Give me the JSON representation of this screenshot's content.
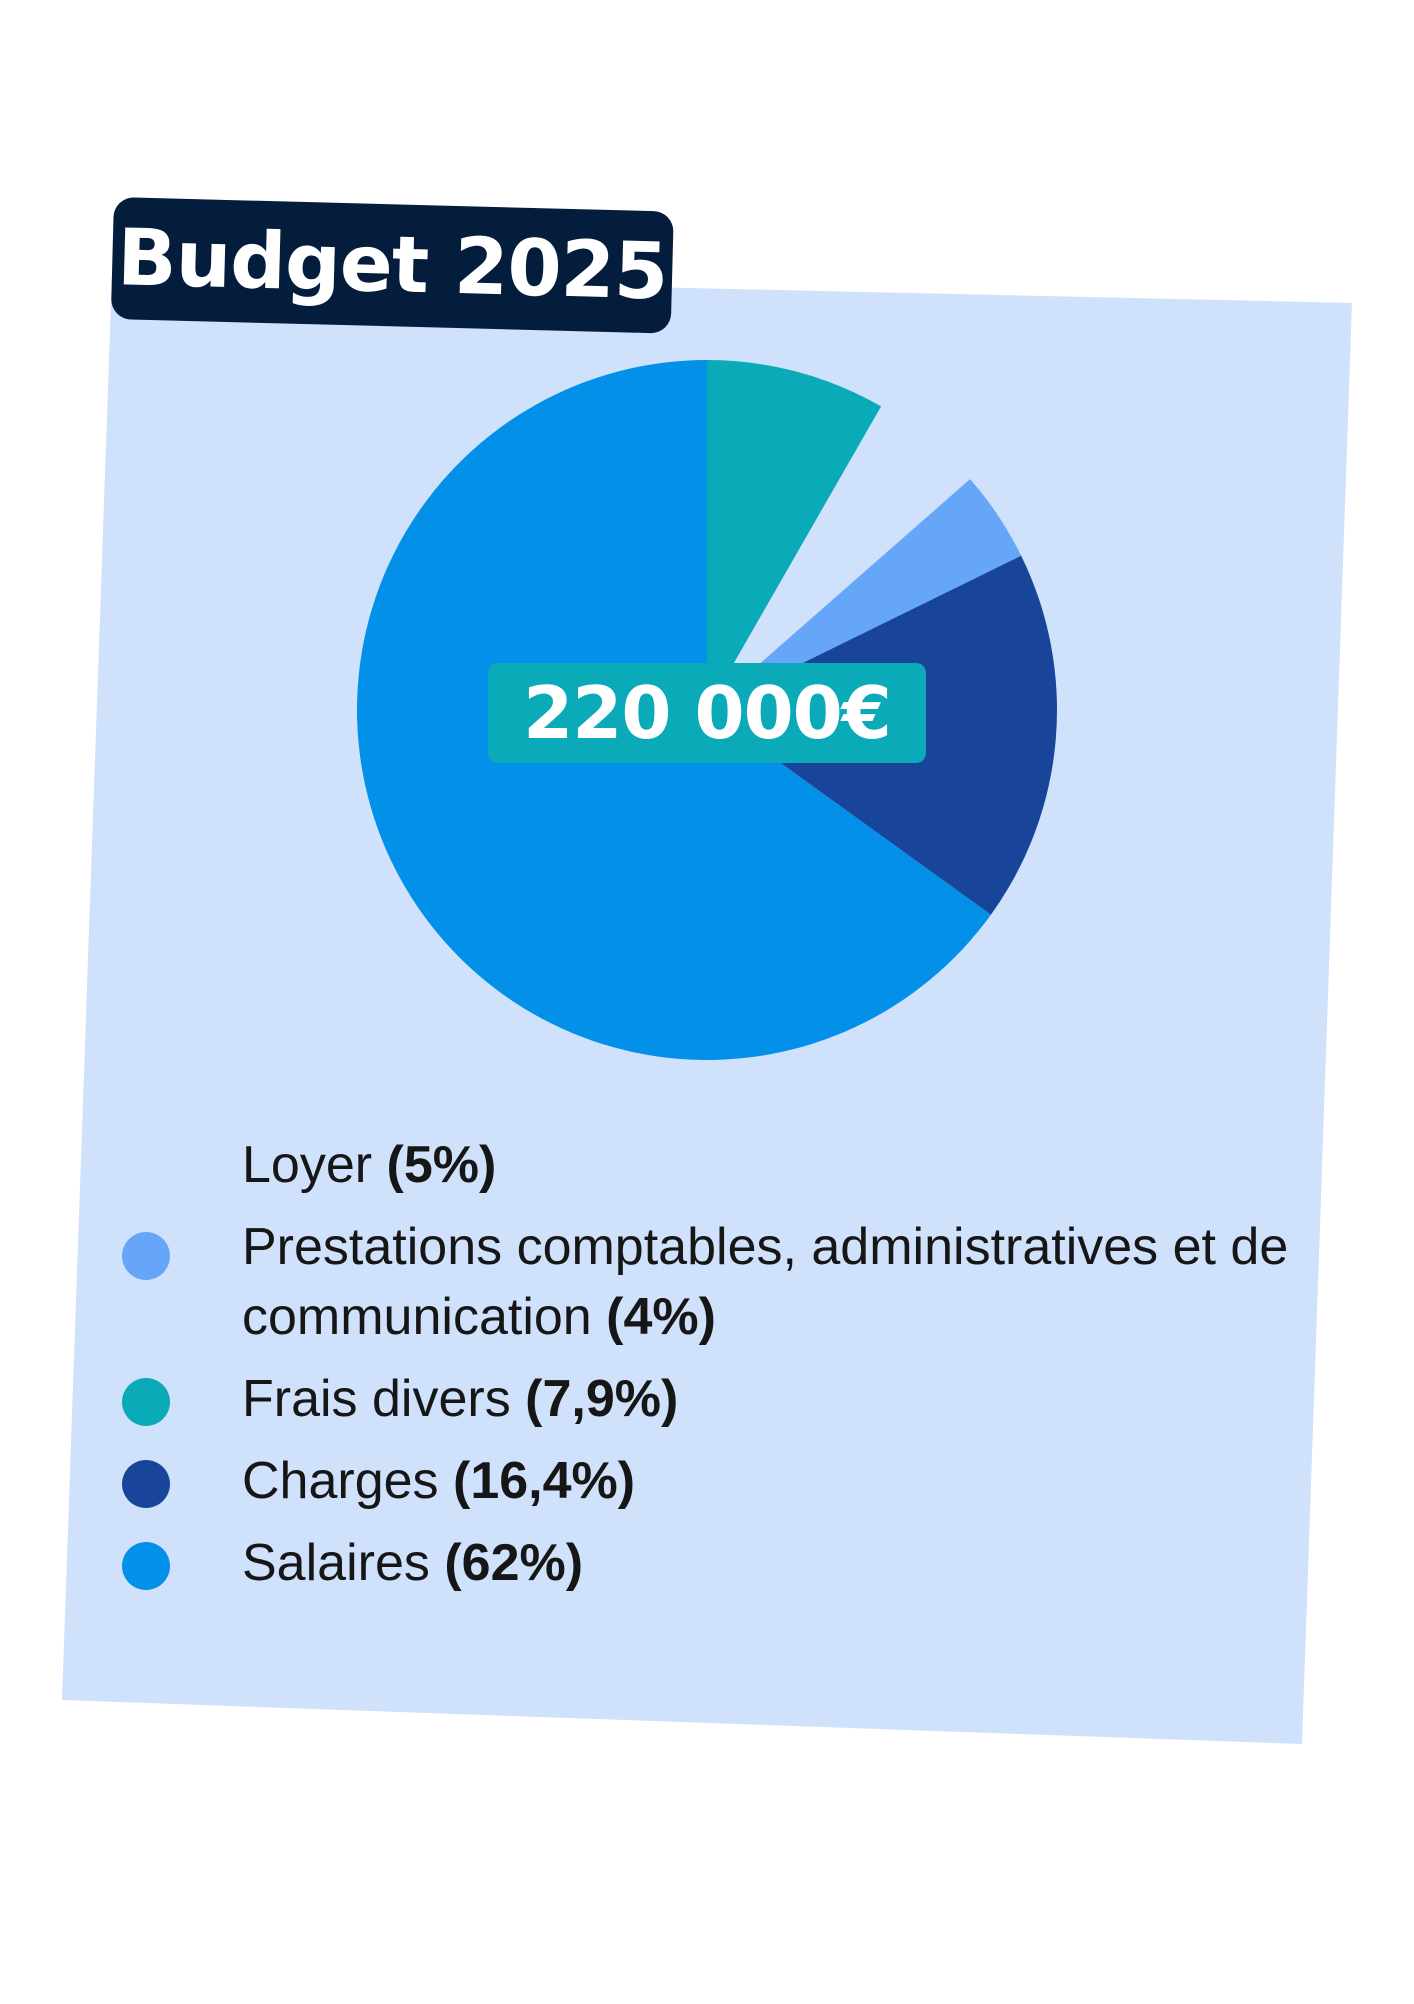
{
  "chart_data": {
    "type": "pie",
    "title": "Budget 2025",
    "total_label": "220 000€",
    "slices": [
      {
        "name": "Frais divers",
        "percent_label": "(7,9%)",
        "value": 7.9,
        "color": "#0aaab8",
        "dot_color": "#0aaab8"
      },
      {
        "name": "Loyer",
        "percent_label": "(5%)",
        "value": 5,
        "color": "#cfe1fb",
        "dot_color": "#cfe1fb"
      },
      {
        "name": "Prestations comptables, administratives et de communication",
        "percent_label": "(4%)",
        "value": 4,
        "color": "#66a6f8",
        "dot_color": "#66a6f8"
      },
      {
        "name": "Charges",
        "percent_label": "(16,4%)",
        "value": 16.4,
        "color": "#18459a",
        "dot_color": "#18459a"
      },
      {
        "name": "Salaires",
        "percent_label": "(62%)",
        "value": 62,
        "color": "#0390e8",
        "dot_color": "#0390e8"
      }
    ]
  },
  "legend": {
    "items": [
      {
        "label": "Loyer",
        "percent": "(5%)",
        "color": "#cfe1fb"
      },
      {
        "label": "Prestations comptables, administratives et de communication",
        "percent": "(4%)",
        "color": "#66a6f8"
      },
      {
        "label": "Frais divers",
        "percent": "(7,9%)",
        "color": "#0aaab8"
      },
      {
        "label": "Charges",
        "percent": "(16,4%)",
        "color": "#18459a"
      },
      {
        "label": "Salaires",
        "percent": "(62%)",
        "color": "#0390e8"
      }
    ]
  },
  "colors": {
    "card_background": "#cfe1fb",
    "title_background": "#041d3d",
    "badge_background": "#0aaab8"
  }
}
